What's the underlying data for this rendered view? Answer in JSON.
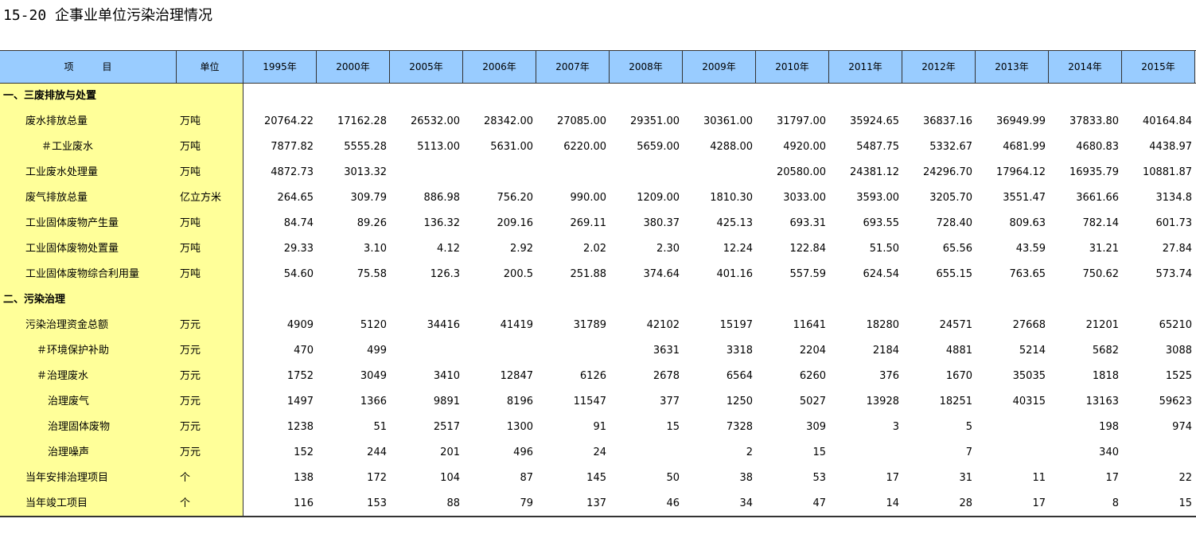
{
  "header": {
    "title": "15-20 企事业单位污染治理情况"
  },
  "table": {
    "columns": [
      "项　　　目",
      "单位",
      "1995年",
      "2000年",
      "2005年",
      "2006年",
      "2007年",
      "2008年",
      "2009年",
      "2010年",
      "2011年",
      "2012年",
      "2013年",
      "2014年",
      "2015年"
    ],
    "rows": [
      {
        "item": "一、三废排放与处置"
      },
      {
        "item": "废水排放总量",
        "unit": "万吨",
        "values": [
          "20764.22",
          "17162.28",
          "26532.00",
          "28342.00",
          "27085.00",
          "29351.00",
          "30361.00",
          "31797.00",
          "35924.65",
          "36837.16",
          "36949.99",
          "37833.80",
          "40164.84"
        ]
      },
      {
        "item": "＃工业废水",
        "unit": "万吨",
        "values": [
          "7877.82",
          "5555.28",
          "5113.00",
          "5631.00",
          "6220.00",
          "5659.00",
          "4288.00",
          "4920.00",
          "5487.75",
          "5332.67",
          "4681.99",
          "4680.83",
          "4438.97"
        ]
      },
      {
        "item": "工业废水处理量",
        "unit": "万吨",
        "values": [
          "4872.73",
          "3013.32",
          null,
          null,
          null,
          null,
          null,
          "20580.00",
          "24381.12",
          "24296.70",
          "17964.12",
          "16935.79",
          "10881.87"
        ]
      },
      {
        "item": "废气排放总量",
        "unit": "亿立方米",
        "values": [
          "264.65",
          "309.79",
          "886.98",
          "756.20",
          "990.00",
          "1209.00",
          "1810.30",
          "3033.00",
          "3593.00",
          "3205.70",
          "3551.47",
          "3661.66",
          "3134.8"
        ]
      },
      {
        "item": "工业固体废物产生量",
        "unit": "万吨",
        "values": [
          "84.74",
          "89.26",
          "136.32",
          "209.16",
          "269.11",
          "380.37",
          "425.13",
          "693.31",
          "693.55",
          "728.40",
          "809.63",
          "782.14",
          "601.73"
        ]
      },
      {
        "item": "工业固体废物处置量",
        "unit": "万吨",
        "values": [
          "29.33",
          "3.10",
          "4.12",
          "2.92",
          "2.02",
          "2.30",
          "12.24",
          "122.84",
          "51.50",
          "65.56",
          "43.59",
          "31.21",
          "27.84"
        ]
      },
      {
        "item": "工业固体废物综合利用量",
        "unit": "万吨",
        "values": [
          "54.60",
          "75.58",
          "126.3",
          "200.5",
          "251.88",
          "374.64",
          "401.16",
          "557.59",
          "624.54",
          "655.15",
          "763.65",
          "750.62",
          "573.74"
        ]
      },
      {
        "item": "二、污染治理"
      },
      {
        "item": "污染治理资金总额",
        "unit": "万元",
        "values": [
          "4909",
          "5120",
          "34416",
          "41419",
          "31789",
          "42102",
          "15197",
          "11641",
          "18280",
          "24571",
          "27668",
          "21201",
          "65210"
        ]
      },
      {
        "item": "＃环境保护补助",
        "unit": "万元",
        "values": [
          "470",
          "499",
          null,
          null,
          null,
          "3631",
          "3318",
          "2204",
          "2184",
          "4881",
          "5214",
          "5682",
          "3088"
        ]
      },
      {
        "item": "＃治理废水",
        "unit": "万元",
        "values": [
          "1752",
          "3049",
          "3410",
          "12847",
          "6126",
          "2678",
          "6564",
          "6260",
          "376",
          "1670",
          "35035",
          "1818",
          "1525"
        ]
      },
      {
        "item": "治理废气",
        "unit": "万元",
        "values": [
          "1497",
          "1366",
          "9891",
          "8196",
          "11547",
          "377",
          "1250",
          "5027",
          "13928",
          "18251",
          "40315",
          "13163",
          "59623"
        ]
      },
      {
        "item": "治理固体废物",
        "unit": "万元",
        "values": [
          "1238",
          "51",
          "2517",
          "1300",
          "91",
          "15",
          "7328",
          "309",
          "3",
          "5",
          null,
          "198",
          "974"
        ]
      },
      {
        "item": "治理噪声",
        "unit": "万元",
        "values": [
          "152",
          "244",
          "201",
          "496",
          "24",
          null,
          "2",
          "15",
          null,
          "7",
          null,
          "340",
          null
        ]
      },
      {
        "item": "当年安排治理项目",
        "unit": "个",
        "values": [
          "138",
          "172",
          "104",
          "87",
          "145",
          "50",
          "38",
          "53",
          "17",
          "31",
          "11",
          "17",
          "22"
        ]
      },
      {
        "item": "当年竣工项目",
        "unit": "个",
        "values": [
          "116",
          "153",
          "88",
          "79",
          "137",
          "46",
          "34",
          "47",
          "14",
          "28",
          "17",
          "8",
          "15"
        ]
      }
    ]
  }
}
